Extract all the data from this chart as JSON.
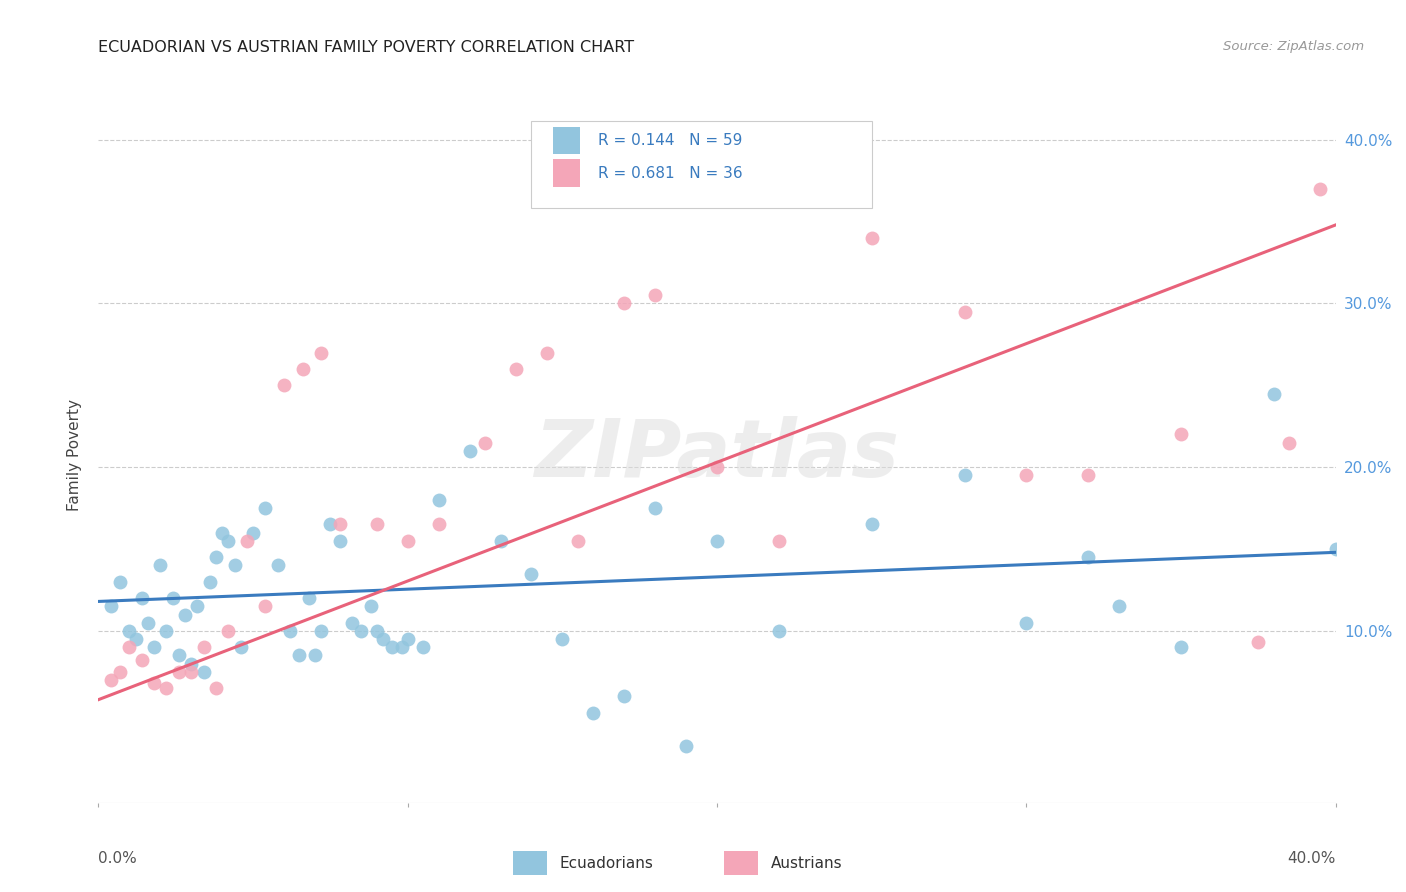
{
  "title": "ECUADORIAN VS AUSTRIAN FAMILY POVERTY CORRELATION CHART",
  "source": "Source: ZipAtlas.com",
  "ylabel": "Family Poverty",
  "watermark": "ZIPatlas",
  "blue_color": "#92c5de",
  "pink_color": "#f4a6b8",
  "blue_line_color": "#3a7bbf",
  "pink_line_color": "#e8627a",
  "xlim": [
    0.0,
    0.4
  ],
  "ylim": [
    -0.005,
    0.42
  ],
  "yticks": [
    0.1,
    0.2,
    0.3,
    0.4
  ],
  "ytick_labels": [
    "10.0%",
    "20.0%",
    "30.0%",
    "40.0%"
  ],
  "xtick_positions": [
    0.0,
    0.1,
    0.2,
    0.3,
    0.4
  ],
  "legend_text_color": "#3a7bbf",
  "blue_scatter_x": [
    0.004,
    0.007,
    0.01,
    0.012,
    0.014,
    0.016,
    0.018,
    0.02,
    0.022,
    0.024,
    0.026,
    0.028,
    0.03,
    0.032,
    0.034,
    0.036,
    0.038,
    0.04,
    0.042,
    0.044,
    0.046,
    0.05,
    0.054,
    0.058,
    0.062,
    0.065,
    0.068,
    0.07,
    0.072,
    0.075,
    0.078,
    0.082,
    0.085,
    0.088,
    0.09,
    0.092,
    0.095,
    0.098,
    0.1,
    0.105,
    0.11,
    0.12,
    0.13,
    0.14,
    0.15,
    0.16,
    0.17,
    0.18,
    0.19,
    0.2,
    0.22,
    0.25,
    0.28,
    0.3,
    0.32,
    0.33,
    0.35,
    0.38,
    0.4
  ],
  "blue_scatter_y": [
    0.115,
    0.13,
    0.1,
    0.095,
    0.12,
    0.105,
    0.09,
    0.14,
    0.1,
    0.12,
    0.085,
    0.11,
    0.08,
    0.115,
    0.075,
    0.13,
    0.145,
    0.16,
    0.155,
    0.14,
    0.09,
    0.16,
    0.175,
    0.14,
    0.1,
    0.085,
    0.12,
    0.085,
    0.1,
    0.165,
    0.155,
    0.105,
    0.1,
    0.115,
    0.1,
    0.095,
    0.09,
    0.09,
    0.095,
    0.09,
    0.18,
    0.21,
    0.155,
    0.135,
    0.095,
    0.05,
    0.06,
    0.175,
    0.03,
    0.155,
    0.1,
    0.165,
    0.195,
    0.105,
    0.145,
    0.115,
    0.09,
    0.245,
    0.15
  ],
  "pink_scatter_x": [
    0.004,
    0.007,
    0.01,
    0.014,
    0.018,
    0.022,
    0.026,
    0.03,
    0.034,
    0.038,
    0.042,
    0.048,
    0.054,
    0.06,
    0.066,
    0.072,
    0.078,
    0.09,
    0.1,
    0.11,
    0.125,
    0.135,
    0.145,
    0.155,
    0.17,
    0.18,
    0.2,
    0.22,
    0.25,
    0.28,
    0.3,
    0.32,
    0.35,
    0.375,
    0.385,
    0.395
  ],
  "pink_scatter_y": [
    0.07,
    0.075,
    0.09,
    0.082,
    0.068,
    0.065,
    0.075,
    0.075,
    0.09,
    0.065,
    0.1,
    0.155,
    0.115,
    0.25,
    0.26,
    0.27,
    0.165,
    0.165,
    0.155,
    0.165,
    0.215,
    0.26,
    0.27,
    0.155,
    0.3,
    0.305,
    0.2,
    0.155,
    0.34,
    0.295,
    0.195,
    0.195,
    0.22,
    0.093,
    0.215,
    0.37
  ],
  "blue_line_x": [
    0.0,
    0.4
  ],
  "blue_line_y": [
    0.118,
    0.148
  ],
  "pink_line_x": [
    0.0,
    0.4
  ],
  "pink_line_y": [
    0.058,
    0.348
  ]
}
